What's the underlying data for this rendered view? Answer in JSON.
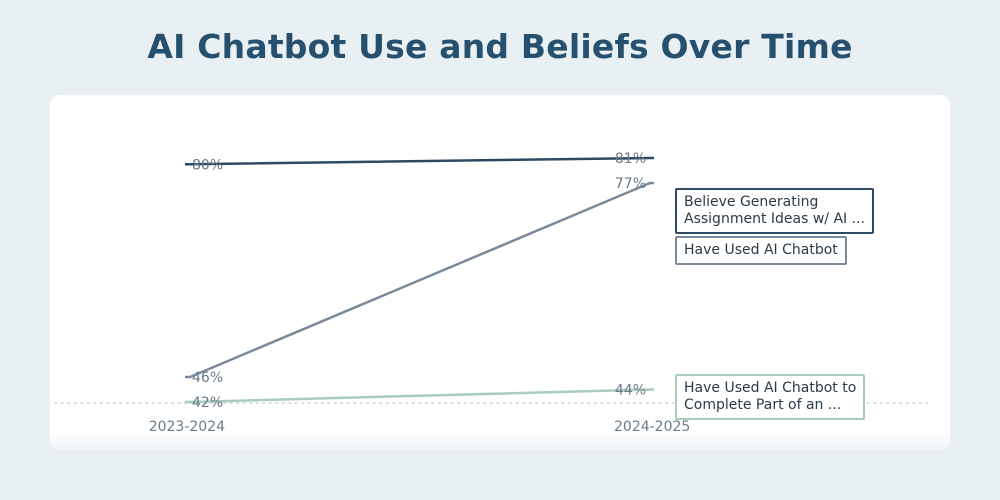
{
  "chart_data": {
    "type": "line",
    "title": "AI Chatbot Use and Beliefs Over Time",
    "categories": [
      "2023-2024",
      "2024-2025"
    ],
    "series": [
      {
        "name": "Believe Generating Assignment Ideas w/ AI ...",
        "legend_lines": "Believe Generating\nAssignment Ideas w/ AI ...",
        "values": [
          80,
          81
        ],
        "labels": [
          "80%",
          "81%"
        ],
        "color": "#2e4a63"
      },
      {
        "name": "Have Used AI Chatbot",
        "legend_lines": "Have Used AI Chatbot",
        "values": [
          46,
          77
        ],
        "labels": [
          "46%",
          "77%"
        ],
        "color": "#7a8a9a"
      },
      {
        "name": "Have Used AI Chatbot to Complete Part of an ...",
        "legend_lines": "Have Used AI Chatbot to\nComplete Part of an ...",
        "values": [
          42,
          44
        ],
        "labels": [
          "42%",
          "44%"
        ],
        "color": "#a9cdbd"
      }
    ],
    "ylim": [
      40,
      82
    ],
    "xlabel": "",
    "ylabel": "",
    "grid": false,
    "legend_position": "right"
  }
}
